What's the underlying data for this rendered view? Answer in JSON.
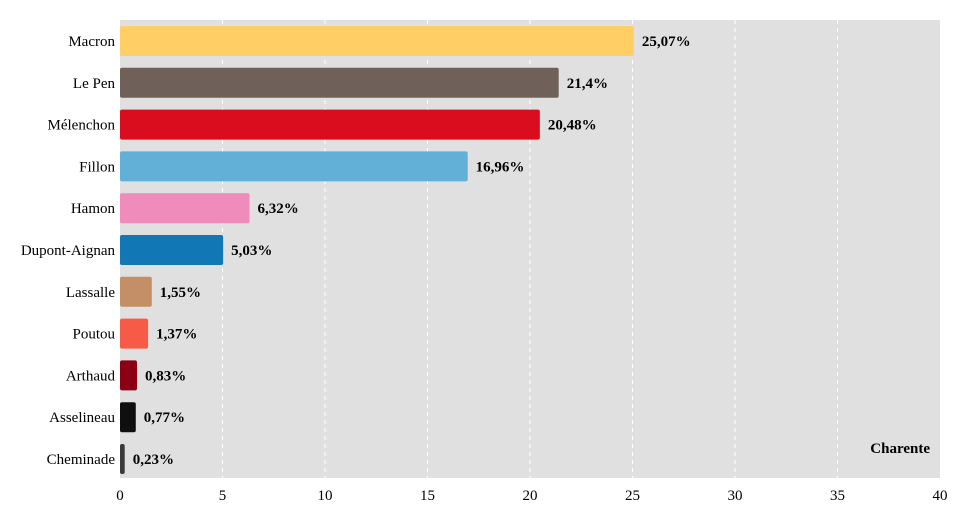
{
  "chart_data": {
    "type": "bar",
    "orientation": "horizontal",
    "categories": [
      "Macron",
      "Le Pen",
      "Mélenchon",
      "Fillon",
      "Hamon",
      "Dupont-Aignan",
      "Lassalle",
      "Poutou",
      "Arthaud",
      "Asselineau",
      "Cheminade"
    ],
    "values": [
      25.07,
      21.4,
      20.48,
      16.96,
      6.32,
      5.03,
      1.55,
      1.37,
      0.83,
      0.77,
      0.23
    ],
    "value_labels": [
      "25,07%",
      "21,4%",
      "20,48%",
      "16,96%",
      "6,32%",
      "5,03%",
      "1,55%",
      "1,37%",
      "0,83%",
      "0,77%",
      "0,23%"
    ],
    "colors": [
      "#FFCF66",
      "#6F605A",
      "#DA0D1F",
      "#62B0D8",
      "#F08CBB",
      "#1278B5",
      "#C48E66",
      "#F55B47",
      "#8C0014",
      "#0F0F0F",
      "#3A3A3A"
    ],
    "xlim": [
      0,
      40
    ],
    "x_ticks": [
      0,
      5,
      10,
      15,
      20,
      25,
      30,
      35,
      40
    ],
    "grid": true,
    "plot_background": "#E0E0E0",
    "annotation": "Charente",
    "title": "",
    "xlabel": "",
    "ylabel": ""
  }
}
